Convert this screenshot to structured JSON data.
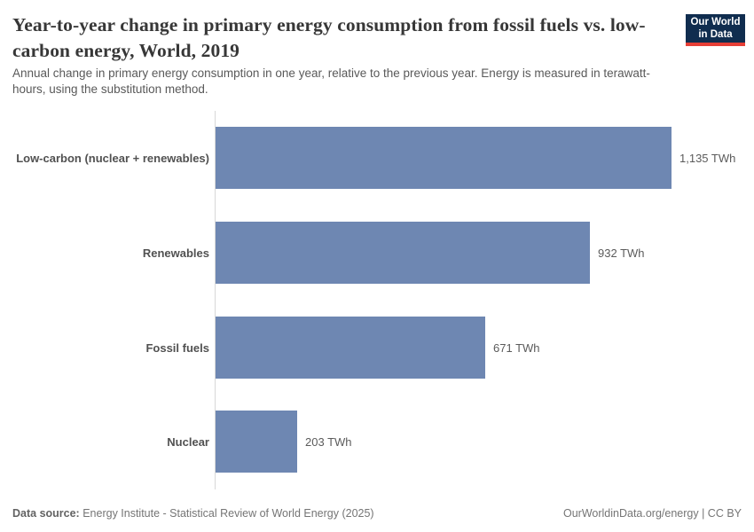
{
  "logo": {
    "line1": "Our World",
    "line2": "in Data",
    "bg_color": "#102d4f",
    "accent_color": "#e63e36"
  },
  "header": {
    "title": "Year-to-year change in primary energy consumption from fossil fuels vs. low-carbon energy, World, 2019",
    "subtitle": "Annual change in primary energy consumption in one year, relative to the previous year. Energy is measured in terawatt-hours, using the substitution method."
  },
  "chart_data": {
    "type": "bar",
    "orientation": "horizontal",
    "title": "Year-to-year change in primary energy consumption from fossil fuels vs. low-carbon energy, World, 2019",
    "categories": [
      "Low-carbon (nuclear + renewables)",
      "Renewables",
      "Fossil fuels",
      "Nuclear"
    ],
    "values": [
      1135,
      932,
      671,
      203
    ],
    "value_labels": [
      "1,135 TWh",
      "932 TWh",
      "671 TWh",
      "203 TWh"
    ],
    "unit": "TWh",
    "xlim": [
      0,
      1135
    ],
    "bar_color": "#6e87b2",
    "axis_line_color": "#d8d8d8",
    "grid": false,
    "legend": false
  },
  "footer": {
    "source_label": "Data source:",
    "source_text": " Energy Institute - Statistical Review of World Energy (2025)",
    "link": "OurWorldinData.org/energy | CC BY"
  }
}
